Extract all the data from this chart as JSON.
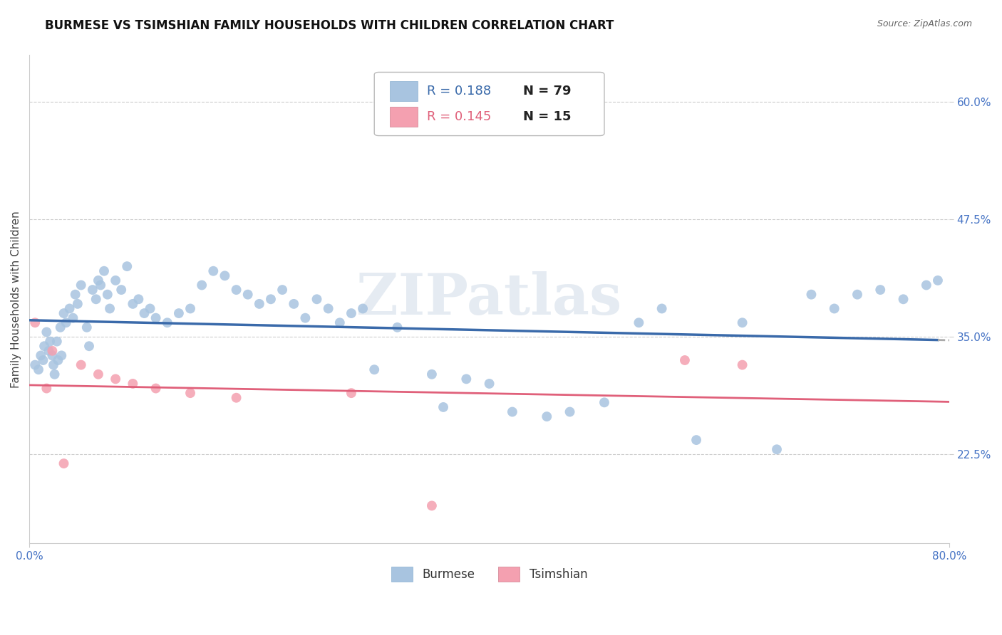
{
  "title": "BURMESE VS TSIMSHIAN FAMILY HOUSEHOLDS WITH CHILDREN CORRELATION CHART",
  "source": "Source: ZipAtlas.com",
  "ylabel": "Family Households with Children",
  "xlabel_bottom_left": "0.0%",
  "xlabel_bottom_right": "80.0%",
  "xmin": 0.0,
  "xmax": 80.0,
  "ymin": 13.0,
  "ymax": 65.0,
  "yticks": [
    22.5,
    35.0,
    47.5,
    60.0
  ],
  "ytick_labels": [
    "22.5%",
    "35.0%",
    "47.5%",
    "60.0%"
  ],
  "legend_r_burmese": "R = 0.188",
  "legend_n_burmese": "N = 79",
  "legend_r_tsimshian": "R = 0.145",
  "legend_n_tsimshian": "N = 15",
  "burmese_color": "#a8c4e0",
  "tsimshian_color": "#f4a0b0",
  "burmese_line_color": "#3a6aaa",
  "tsimshian_line_color": "#e0607a",
  "dash_line_color": "#aaaaaa",
  "watermark": "ZIPatlas",
  "background_color": "#ffffff",
  "burmese_x": [
    0.5,
    0.8,
    1.0,
    1.2,
    1.3,
    1.5,
    1.7,
    1.8,
    2.0,
    2.1,
    2.2,
    2.4,
    2.5,
    2.7,
    2.8,
    3.0,
    3.2,
    3.5,
    3.8,
    4.0,
    4.2,
    4.5,
    5.0,
    5.2,
    5.5,
    5.8,
    6.0,
    6.2,
    6.5,
    6.8,
    7.0,
    7.5,
    8.0,
    8.5,
    9.0,
    9.5,
    10.0,
    10.5,
    11.0,
    12.0,
    13.0,
    14.0,
    15.0,
    16.0,
    17.0,
    18.0,
    19.0,
    20.0,
    21.0,
    22.0,
    23.0,
    24.0,
    25.0,
    26.0,
    27.0,
    28.0,
    29.0,
    30.0,
    32.0,
    35.0,
    36.0,
    38.0,
    40.0,
    42.0,
    45.0,
    47.0,
    50.0,
    53.0,
    55.0,
    58.0,
    62.0,
    65.0,
    68.0,
    70.0,
    72.0,
    74.0,
    76.0,
    78.0,
    79.0
  ],
  "burmese_y": [
    32.0,
    31.5,
    33.0,
    32.5,
    34.0,
    35.5,
    33.5,
    34.5,
    33.0,
    32.0,
    31.0,
    34.5,
    32.5,
    36.0,
    33.0,
    37.5,
    36.5,
    38.0,
    37.0,
    39.5,
    38.5,
    40.5,
    36.0,
    34.0,
    40.0,
    39.0,
    41.0,
    40.5,
    42.0,
    39.5,
    38.0,
    41.0,
    40.0,
    42.5,
    38.5,
    39.0,
    37.5,
    38.0,
    37.0,
    36.5,
    37.5,
    38.0,
    40.5,
    42.0,
    41.5,
    40.0,
    39.5,
    38.5,
    39.0,
    40.0,
    38.5,
    37.0,
    39.0,
    38.0,
    36.5,
    37.5,
    38.0,
    31.5,
    36.0,
    31.0,
    27.5,
    30.5,
    30.0,
    27.0,
    26.5,
    27.0,
    28.0,
    36.5,
    38.0,
    24.0,
    36.5,
    23.0,
    39.5,
    38.0,
    39.5,
    40.0,
    39.0,
    40.5,
    41.0
  ],
  "tsimshian_x": [
    0.5,
    1.5,
    2.0,
    3.0,
    4.5,
    6.0,
    7.5,
    9.0,
    11.0,
    14.0,
    18.0,
    28.0,
    35.0,
    57.0,
    62.0
  ],
  "tsimshian_y": [
    36.5,
    29.5,
    33.5,
    21.5,
    32.0,
    31.0,
    30.5,
    30.0,
    29.5,
    29.0,
    28.5,
    29.0,
    17.0,
    32.5,
    32.0
  ],
  "title_fontsize": 12,
  "axis_label_fontsize": 11,
  "tick_fontsize": 11,
  "legend_fontsize": 13
}
